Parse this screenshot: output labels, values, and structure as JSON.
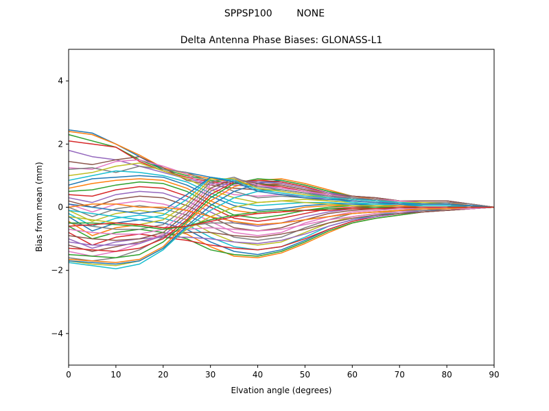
{
  "chart_data": {
    "type": "line",
    "suptitle": "SPPSP100        NONE",
    "title": "Delta Antenna Phase Biases: GLONASS-L1",
    "xlabel": "Elvation angle (degrees)",
    "ylabel": "Bias from mean (mm)",
    "xlim": [
      0,
      90
    ],
    "ylim": [
      -5,
      5
    ],
    "xticks": [
      0,
      10,
      20,
      30,
      40,
      50,
      60,
      70,
      80,
      90
    ],
    "yticks": [
      -4,
      -2,
      0,
      2,
      4
    ],
    "grid": false,
    "legend": "none",
    "x": [
      0,
      5,
      10,
      15,
      20,
      25,
      30,
      35,
      40,
      45,
      50,
      55,
      60,
      65,
      70,
      75,
      80,
      85,
      90
    ],
    "colors": [
      "#1f77b4",
      "#ff7f0e",
      "#2ca02c",
      "#d62728",
      "#9467bd",
      "#8c564b",
      "#e377c2",
      "#7f7f7f",
      "#bcbd22",
      "#17becf"
    ],
    "series": [
      {
        "values": [
          2.45,
          2.35,
          2.0,
          1.6,
          1.2,
          1.1,
          0.95,
          0.85,
          0.8,
          0.8,
          0.65,
          0.45,
          0.3,
          0.25,
          0.15,
          0.15,
          0.15,
          0.1,
          0.0
        ]
      },
      {
        "values": [
          2.4,
          2.3,
          2.0,
          1.65,
          1.25,
          1.05,
          0.9,
          0.8,
          0.7,
          0.75,
          0.6,
          0.4,
          0.3,
          0.2,
          0.15,
          0.15,
          0.15,
          0.1,
          0.0
        ]
      },
      {
        "values": [
          2.3,
          2.1,
          1.9,
          1.5,
          1.2,
          1.0,
          0.85,
          0.75,
          0.7,
          0.7,
          0.55,
          0.4,
          0.25,
          0.2,
          0.15,
          0.1,
          0.1,
          0.05,
          0.0
        ]
      },
      {
        "values": [
          2.1,
          2.0,
          1.9,
          1.45,
          1.15,
          0.95,
          0.8,
          0.75,
          0.7,
          0.65,
          0.5,
          0.35,
          0.25,
          0.2,
          0.1,
          0.1,
          0.1,
          0.05,
          0.0
        ]
      },
      {
        "values": [
          1.8,
          1.6,
          1.5,
          1.3,
          1.1,
          0.9,
          0.75,
          0.7,
          0.65,
          0.6,
          0.5,
          0.35,
          0.25,
          0.2,
          0.1,
          0.1,
          0.1,
          0.05,
          0.0
        ]
      },
      {
        "values": [
          1.45,
          1.35,
          1.5,
          1.6,
          1.25,
          0.85,
          0.7,
          0.6,
          0.55,
          0.55,
          0.45,
          0.3,
          0.2,
          0.15,
          0.1,
          0.1,
          0.1,
          0.05,
          0.0
        ]
      },
      {
        "values": [
          1.25,
          1.2,
          1.45,
          1.5,
          1.3,
          1.05,
          0.6,
          0.4,
          0.35,
          0.4,
          0.35,
          0.25,
          0.2,
          0.15,
          0.1,
          0.1,
          0.1,
          0.05,
          0.0
        ]
      },
      {
        "values": [
          1.2,
          1.25,
          1.1,
          1.3,
          1.2,
          1.1,
          0.8,
          0.5,
          0.3,
          0.35,
          0.3,
          0.2,
          0.15,
          0.1,
          0.1,
          0.05,
          0.05,
          0.05,
          0.0
        ]
      },
      {
        "values": [
          1.0,
          1.1,
          1.3,
          1.4,
          1.15,
          0.9,
          0.55,
          0.3,
          0.15,
          0.2,
          0.25,
          0.2,
          0.15,
          0.1,
          0.1,
          0.05,
          0.05,
          0.0,
          0.0
        ]
      },
      {
        "values": [
          0.85,
          1.0,
          1.15,
          1.1,
          1.0,
          0.8,
          0.45,
          0.15,
          0.05,
          0.1,
          0.15,
          0.15,
          0.1,
          0.1,
          0.05,
          0.05,
          0.05,
          0.0,
          0.0
        ]
      },
      {
        "values": [
          0.7,
          0.9,
          0.95,
          1.0,
          0.95,
          0.7,
          0.35,
          0.05,
          -0.1,
          -0.05,
          0.05,
          0.1,
          0.1,
          0.05,
          0.05,
          0.05,
          0.05,
          0.0,
          0.0
        ]
      },
      {
        "values": [
          0.6,
          0.75,
          0.85,
          0.9,
          0.85,
          0.6,
          0.2,
          -0.1,
          -0.2,
          -0.15,
          0.0,
          0.05,
          0.05,
          0.05,
          0.05,
          0.0,
          0.0,
          0.0,
          0.0
        ]
      },
      {
        "values": [
          0.5,
          0.55,
          0.7,
          0.8,
          0.75,
          0.5,
          0.1,
          -0.25,
          -0.35,
          -0.25,
          -0.1,
          0.0,
          0.05,
          0.0,
          0.0,
          0.0,
          0.0,
          0.0,
          0.0
        ]
      },
      {
        "values": [
          0.4,
          0.35,
          0.55,
          0.65,
          0.6,
          0.35,
          0.0,
          -0.35,
          -0.45,
          -0.35,
          -0.2,
          -0.05,
          0.0,
          0.0,
          0.0,
          0.0,
          0.0,
          0.0,
          0.0
        ]
      },
      {
        "values": [
          0.3,
          0.15,
          0.4,
          0.5,
          0.45,
          0.2,
          -0.15,
          -0.5,
          -0.6,
          -0.5,
          -0.3,
          -0.15,
          -0.05,
          -0.05,
          0.0,
          0.0,
          0.0,
          0.0,
          0.0
        ]
      },
      {
        "values": [
          0.2,
          0.0,
          0.25,
          0.35,
          0.3,
          0.05,
          -0.3,
          -0.65,
          -0.75,
          -0.65,
          -0.4,
          -0.2,
          -0.1,
          -0.05,
          -0.05,
          0.0,
          0.0,
          0.0,
          0.0
        ]
      },
      {
        "values": [
          0.1,
          -0.15,
          0.1,
          0.2,
          0.1,
          -0.1,
          -0.45,
          -0.8,
          -0.9,
          -0.8,
          -0.5,
          -0.3,
          -0.15,
          -0.1,
          -0.05,
          -0.05,
          0.0,
          0.0,
          0.0
        ]
      },
      {
        "values": [
          0.0,
          -0.3,
          -0.05,
          0.05,
          -0.05,
          -0.25,
          -0.6,
          -0.95,
          -1.05,
          -0.95,
          -0.65,
          -0.4,
          -0.2,
          -0.15,
          -0.1,
          -0.05,
          -0.05,
          0.0,
          0.0
        ]
      },
      {
        "values": [
          -0.1,
          -0.45,
          -0.2,
          -0.1,
          -0.2,
          -0.4,
          -0.8,
          -1.1,
          -1.2,
          -1.1,
          -0.8,
          -0.5,
          -0.3,
          -0.2,
          -0.1,
          -0.1,
          -0.05,
          0.0,
          0.0
        ]
      },
      {
        "values": [
          -0.2,
          -0.6,
          -0.35,
          -0.25,
          -0.35,
          -0.55,
          -0.95,
          -1.25,
          -1.35,
          -1.25,
          -0.95,
          -0.6,
          -0.4,
          -0.25,
          -0.15,
          -0.1,
          -0.05,
          0.0,
          0.0
        ]
      },
      {
        "values": [
          -0.3,
          -0.75,
          -0.5,
          -0.4,
          -0.5,
          -0.7,
          -1.1,
          -1.4,
          -1.5,
          -1.35,
          -1.05,
          -0.7,
          -0.45,
          -0.3,
          -0.2,
          -0.1,
          -0.1,
          -0.05,
          0.0
        ]
      },
      {
        "values": [
          -0.45,
          -0.9,
          -0.65,
          -0.55,
          -0.65,
          -0.85,
          -1.25,
          -1.55,
          -1.6,
          -1.45,
          -1.15,
          -0.8,
          -0.5,
          -0.35,
          -0.25,
          -0.15,
          -0.1,
          -0.05,
          0.0
        ]
      },
      {
        "values": [
          -0.6,
          -1.0,
          -0.8,
          -0.7,
          -0.8,
          -1.0,
          -1.35,
          -1.5,
          -1.55,
          -1.4,
          -1.1,
          -0.75,
          -0.5,
          -0.35,
          -0.25,
          -0.15,
          -0.1,
          -0.05,
          0.0
        ]
      },
      {
        "values": [
          -0.8,
          -1.2,
          -0.95,
          -0.85,
          -0.95,
          -1.05,
          -1.2,
          -1.3,
          -1.35,
          -1.25,
          -1.0,
          -0.7,
          -0.45,
          -0.3,
          -0.2,
          -0.15,
          -0.1,
          -0.05,
          0.0
        ]
      },
      {
        "values": [
          -1.0,
          -1.3,
          -1.1,
          -1.0,
          -0.95,
          -0.95,
          -1.0,
          -1.1,
          -1.15,
          -1.05,
          -0.85,
          -0.6,
          -0.4,
          -0.3,
          -0.2,
          -0.15,
          -0.1,
          -0.05,
          0.0
        ]
      },
      {
        "values": [
          -1.2,
          -1.4,
          -1.25,
          -1.1,
          -0.9,
          -0.8,
          -0.8,
          -0.9,
          -0.95,
          -0.85,
          -0.7,
          -0.5,
          -0.35,
          -0.25,
          -0.2,
          -0.15,
          -0.1,
          -0.05,
          0.0
        ]
      },
      {
        "values": [
          -1.4,
          -1.55,
          -1.4,
          -1.15,
          -0.85,
          -0.7,
          -0.65,
          -0.7,
          -0.75,
          -0.7,
          -0.55,
          -0.4,
          -0.3,
          -0.2,
          -0.15,
          -0.1,
          -0.05,
          -0.05,
          0.0
        ]
      },
      {
        "values": [
          -1.6,
          -1.7,
          -1.6,
          -1.35,
          -0.95,
          -0.6,
          -0.5,
          -0.5,
          -0.55,
          -0.5,
          -0.4,
          -0.3,
          -0.2,
          -0.15,
          -0.1,
          -0.1,
          -0.05,
          0.0,
          0.0
        ]
      },
      {
        "values": [
          -1.7,
          -1.8,
          -1.85,
          -1.7,
          -1.3,
          -0.7,
          -0.3,
          0.0,
          0.15,
          0.2,
          0.15,
          0.1,
          0.05,
          0.05,
          0.0,
          0.0,
          0.0,
          0.0,
          0.0
        ]
      },
      {
        "values": [
          -1.75,
          -1.85,
          -1.95,
          -1.8,
          -1.35,
          -0.65,
          -0.1,
          0.3,
          0.5,
          0.55,
          0.45,
          0.3,
          0.15,
          0.1,
          0.1,
          0.05,
          0.05,
          0.0,
          0.0
        ]
      },
      {
        "values": [
          -1.7,
          -1.75,
          -1.8,
          -1.7,
          -1.3,
          -0.6,
          0.05,
          0.5,
          0.75,
          0.85,
          0.7,
          0.5,
          0.3,
          0.2,
          0.15,
          0.1,
          0.1,
          0.05,
          0.0
        ]
      },
      {
        "values": [
          -1.65,
          -1.7,
          -1.75,
          -1.65,
          -1.25,
          -0.5,
          0.2,
          0.65,
          0.85,
          0.9,
          0.75,
          0.55,
          0.35,
          0.25,
          0.2,
          0.15,
          0.15,
          0.05,
          0.0
        ]
      },
      {
        "values": [
          -1.5,
          -1.55,
          -1.6,
          -1.5,
          -1.1,
          -0.45,
          0.3,
          0.75,
          0.9,
          0.85,
          0.7,
          0.5,
          0.35,
          0.3,
          0.2,
          0.2,
          0.2,
          0.1,
          0.0
        ]
      },
      {
        "values": [
          -1.3,
          -1.35,
          -1.4,
          -1.3,
          -1.0,
          -0.4,
          0.4,
          0.8,
          0.85,
          0.8,
          0.65,
          0.45,
          0.35,
          0.3,
          0.2,
          0.2,
          0.2,
          0.1,
          0.0
        ]
      },
      {
        "values": [
          -1.1,
          -1.2,
          -1.2,
          -1.15,
          -0.9,
          -0.3,
          0.5,
          0.85,
          0.8,
          0.75,
          0.6,
          0.45,
          0.35,
          0.3,
          0.2,
          0.2,
          0.2,
          0.1,
          0.0
        ]
      },
      {
        "values": [
          -0.9,
          -1.0,
          -1.05,
          -1.0,
          -0.8,
          -0.2,
          0.6,
          0.9,
          0.75,
          0.7,
          0.55,
          0.4,
          0.35,
          0.3,
          0.2,
          0.2,
          0.2,
          0.1,
          0.0
        ]
      },
      {
        "values": [
          -0.7,
          -0.8,
          -0.85,
          -0.85,
          -0.7,
          -0.1,
          0.7,
          0.9,
          0.7,
          0.6,
          0.5,
          0.4,
          0.3,
          0.25,
          0.2,
          0.15,
          0.15,
          0.1,
          0.0
        ]
      },
      {
        "values": [
          -0.5,
          -0.6,
          -0.7,
          -0.7,
          -0.55,
          0.0,
          0.8,
          0.95,
          0.65,
          0.55,
          0.45,
          0.35,
          0.3,
          0.25,
          0.15,
          0.15,
          0.15,
          0.1,
          0.0
        ]
      },
      {
        "values": [
          -0.3,
          -0.4,
          -0.5,
          -0.55,
          -0.4,
          0.1,
          0.9,
          0.9,
          0.6,
          0.5,
          0.4,
          0.3,
          0.25,
          0.2,
          0.15,
          0.15,
          0.1,
          0.05,
          0.0
        ]
      },
      {
        "values": [
          -0.1,
          -0.2,
          -0.3,
          -0.4,
          -0.25,
          0.25,
          0.95,
          0.85,
          0.55,
          0.45,
          0.35,
          0.3,
          0.25,
          0.2,
          0.15,
          0.1,
          0.1,
          0.05,
          0.0
        ]
      },
      {
        "values": [
          0.1,
          0.0,
          -0.1,
          -0.2,
          -0.1,
          0.4,
          0.95,
          0.8,
          0.5,
          0.4,
          0.3,
          0.25,
          0.2,
          0.15,
          0.1,
          0.1,
          0.1,
          0.05,
          0.0
        ]
      },
      {
        "values": [
          0.0,
          0.1,
          0.1,
          0.0,
          0.0,
          -0.1,
          -0.3,
          -0.45,
          -0.55,
          -0.5,
          -0.4,
          -0.3,
          -0.2,
          -0.15,
          -0.1,
          -0.05,
          -0.05,
          0.0,
          0.0
        ]
      },
      {
        "values": [
          -0.5,
          -0.5,
          -0.55,
          -0.6,
          -0.7,
          -0.6,
          -0.4,
          -0.25,
          -0.15,
          -0.1,
          -0.1,
          -0.05,
          -0.05,
          0.0,
          0.0,
          0.0,
          0.0,
          0.0,
          0.0
        ]
      },
      {
        "values": [
          -0.6,
          -0.55,
          -0.5,
          -0.55,
          -0.65,
          -0.6,
          -0.45,
          -0.3,
          -0.2,
          -0.15,
          -0.1,
          -0.1,
          -0.05,
          -0.05,
          0.0,
          0.0,
          0.0,
          0.0,
          0.0
        ]
      }
    ]
  }
}
